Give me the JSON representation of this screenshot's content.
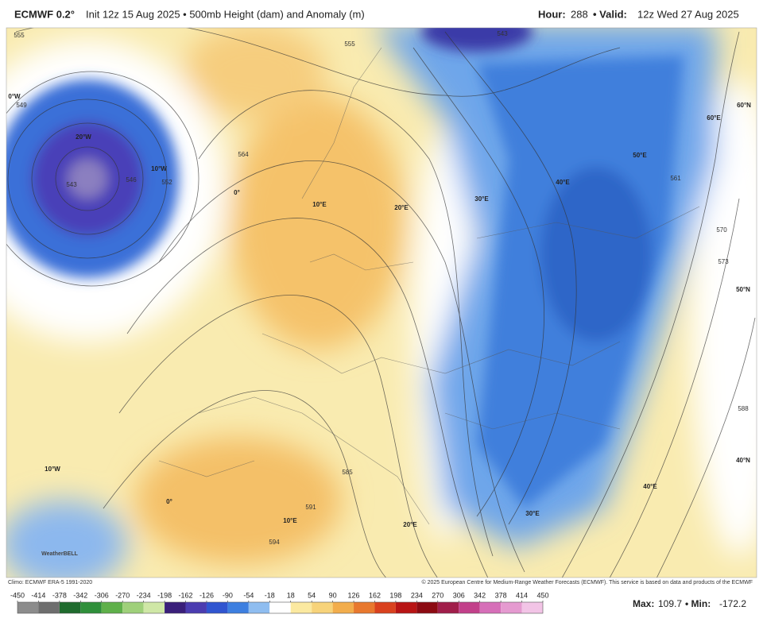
{
  "header": {
    "model": "ECMWF 0.2°",
    "info": "Init 12z 15 Aug 2025 • 500mb Height (dam) and Anomaly (m)",
    "hour_label": "Hour:",
    "hour": "288",
    "valid_label": "• Valid:",
    "valid": "12z Wed 27 Aug 2025"
  },
  "map_labels": [
    "0°W",
    "20°W",
    "10°W",
    "0°",
    "10°E",
    "20°E",
    "30°E",
    "40°E",
    "50°E",
    "60°E",
    "60°N",
    "50°N",
    "40°N",
    "40°E",
    "30°E",
    "20°E",
    "10°E",
    "0°",
    "10°W"
  ],
  "contour_labels": [
    "555",
    "549",
    "543",
    "546",
    "552",
    "555",
    "564",
    "543",
    "585",
    "591",
    "594",
    "588",
    "573",
    "570",
    "561"
  ],
  "logo": "WeatherBELL",
  "footer": {
    "climo": "Climo: ECMWF ERA-5 1991-2020",
    "credit": "© 2025 European Centre for Medium-Range Weather Forecasts (ECMWF). This service is based on data and products of the ECMWF"
  },
  "colorbar": {
    "ticks": [
      -450,
      -414,
      -378,
      -342,
      -306,
      -270,
      -234,
      -198,
      -162,
      -126,
      -90,
      -54,
      -18,
      18,
      54,
      90,
      126,
      162,
      198,
      234,
      270,
      306,
      342,
      378,
      414,
      450
    ],
    "colors": [
      "#8c8c8c",
      "#6e6e6e",
      "#1f6b2e",
      "#2f8f3a",
      "#5fb04a",
      "#9fd07a",
      "#cfe7a6",
      "#3a1f7a",
      "#4b3cb0",
      "#3055d0",
      "#3d7fe0",
      "#8fbdf0",
      "#ffffff",
      "#fbe9a0",
      "#f7d37a",
      "#f2ad4c",
      "#e8782e",
      "#d9411e",
      "#b81414",
      "#8c0a12",
      "#a01e4a",
      "#c2408a",
      "#d66fb8",
      "#e59ad0",
      "#f2c4e6"
    ]
  },
  "stats": {
    "max_label": "Max:",
    "max": 109.7,
    "min_label": "• Min:",
    "min": -172.2
  }
}
